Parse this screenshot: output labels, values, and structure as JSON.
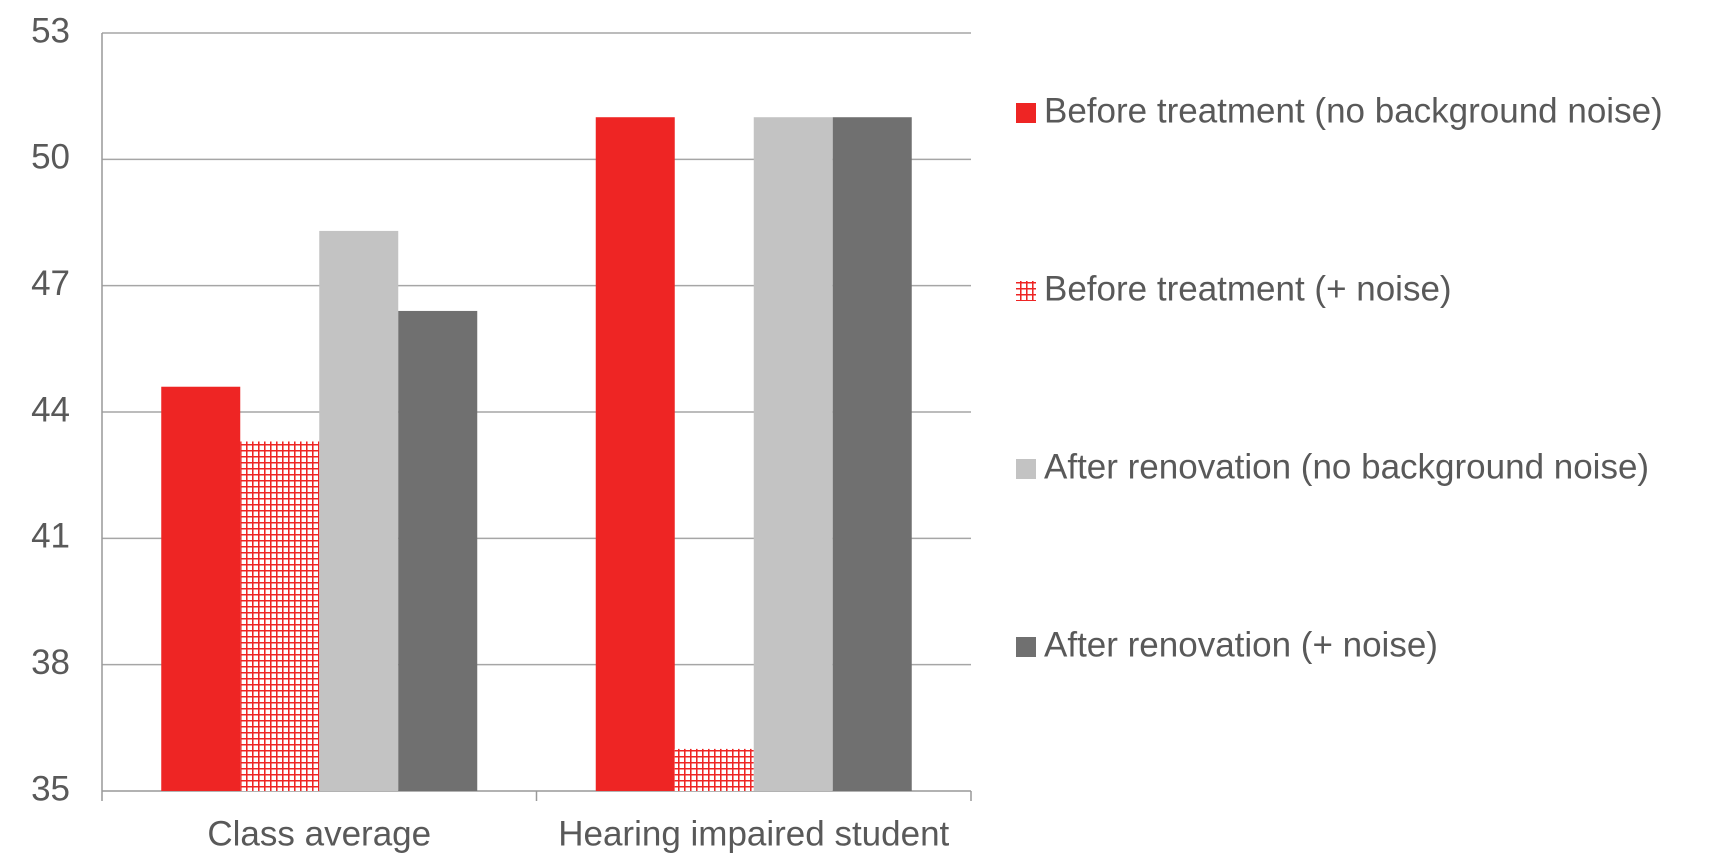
{
  "chart_data": {
    "type": "bar",
    "categories": [
      "Class average",
      "Hearing impaired student"
    ],
    "series": [
      {
        "name": "Before treatment (no background noise)",
        "color": "#ee2524",
        "values": [
          44.6,
          51
        ]
      },
      {
        "name": "Before treatment (+ noise)",
        "color": "#ee2524",
        "pattern": "grid",
        "values": [
          43.3,
          36
        ]
      },
      {
        "name": "After renovation (no background noise)",
        "color": "#c3c3c3",
        "values": [
          48.3,
          51
        ]
      },
      {
        "name": "After renovation (+ noise)",
        "color": "#707070",
        "values": [
          46.4,
          51
        ]
      }
    ],
    "ylim": [
      35,
      53
    ],
    "yticks": [
      35,
      38,
      41,
      44,
      47,
      50,
      53
    ],
    "grid": true,
    "legend": "right"
  }
}
